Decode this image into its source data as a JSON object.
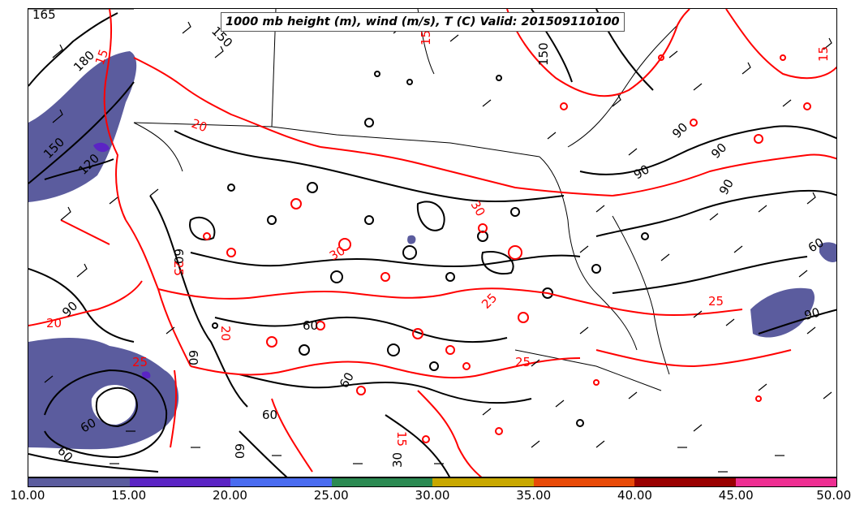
{
  "title": "1000 mb height (m), wind (m/s), T (C) Valid: 201509110100",
  "colors": {
    "height_contour": "#000000",
    "temperature_contour": "#ff0000",
    "border_lines": "#000000",
    "wind_barbs": "#000000"
  },
  "colorbar": {
    "segments": [
      {
        "color": "#5b5c9e"
      },
      {
        "color": "#5b24c4"
      },
      {
        "color": "#4a6cf0"
      },
      {
        "color": "#2b8a52"
      },
      {
        "color": "#c8a800"
      },
      {
        "color": "#e84a08"
      },
      {
        "color": "#990000"
      },
      {
        "color": "#ee2e92"
      }
    ],
    "tick_labels": [
      "10.00",
      "15.00",
      "20.00",
      "25.00",
      "30.00",
      "35.00",
      "40.00",
      "45.00",
      "50.00"
    ]
  },
  "map": {
    "height_labels": [
      "180",
      "150",
      "120",
      "90",
      "60",
      "60",
      "60",
      "60",
      "60",
      "60",
      "90",
      "90",
      "90",
      "90",
      "150",
      "150",
      "165",
      "60",
      "60",
      "90",
      "30",
      "60"
    ],
    "temperature_labels": [
      "15",
      "15",
      "15",
      "20",
      "20",
      "25",
      "25",
      "25",
      "25",
      "30",
      "30",
      "25",
      "15",
      "20"
    ]
  }
}
